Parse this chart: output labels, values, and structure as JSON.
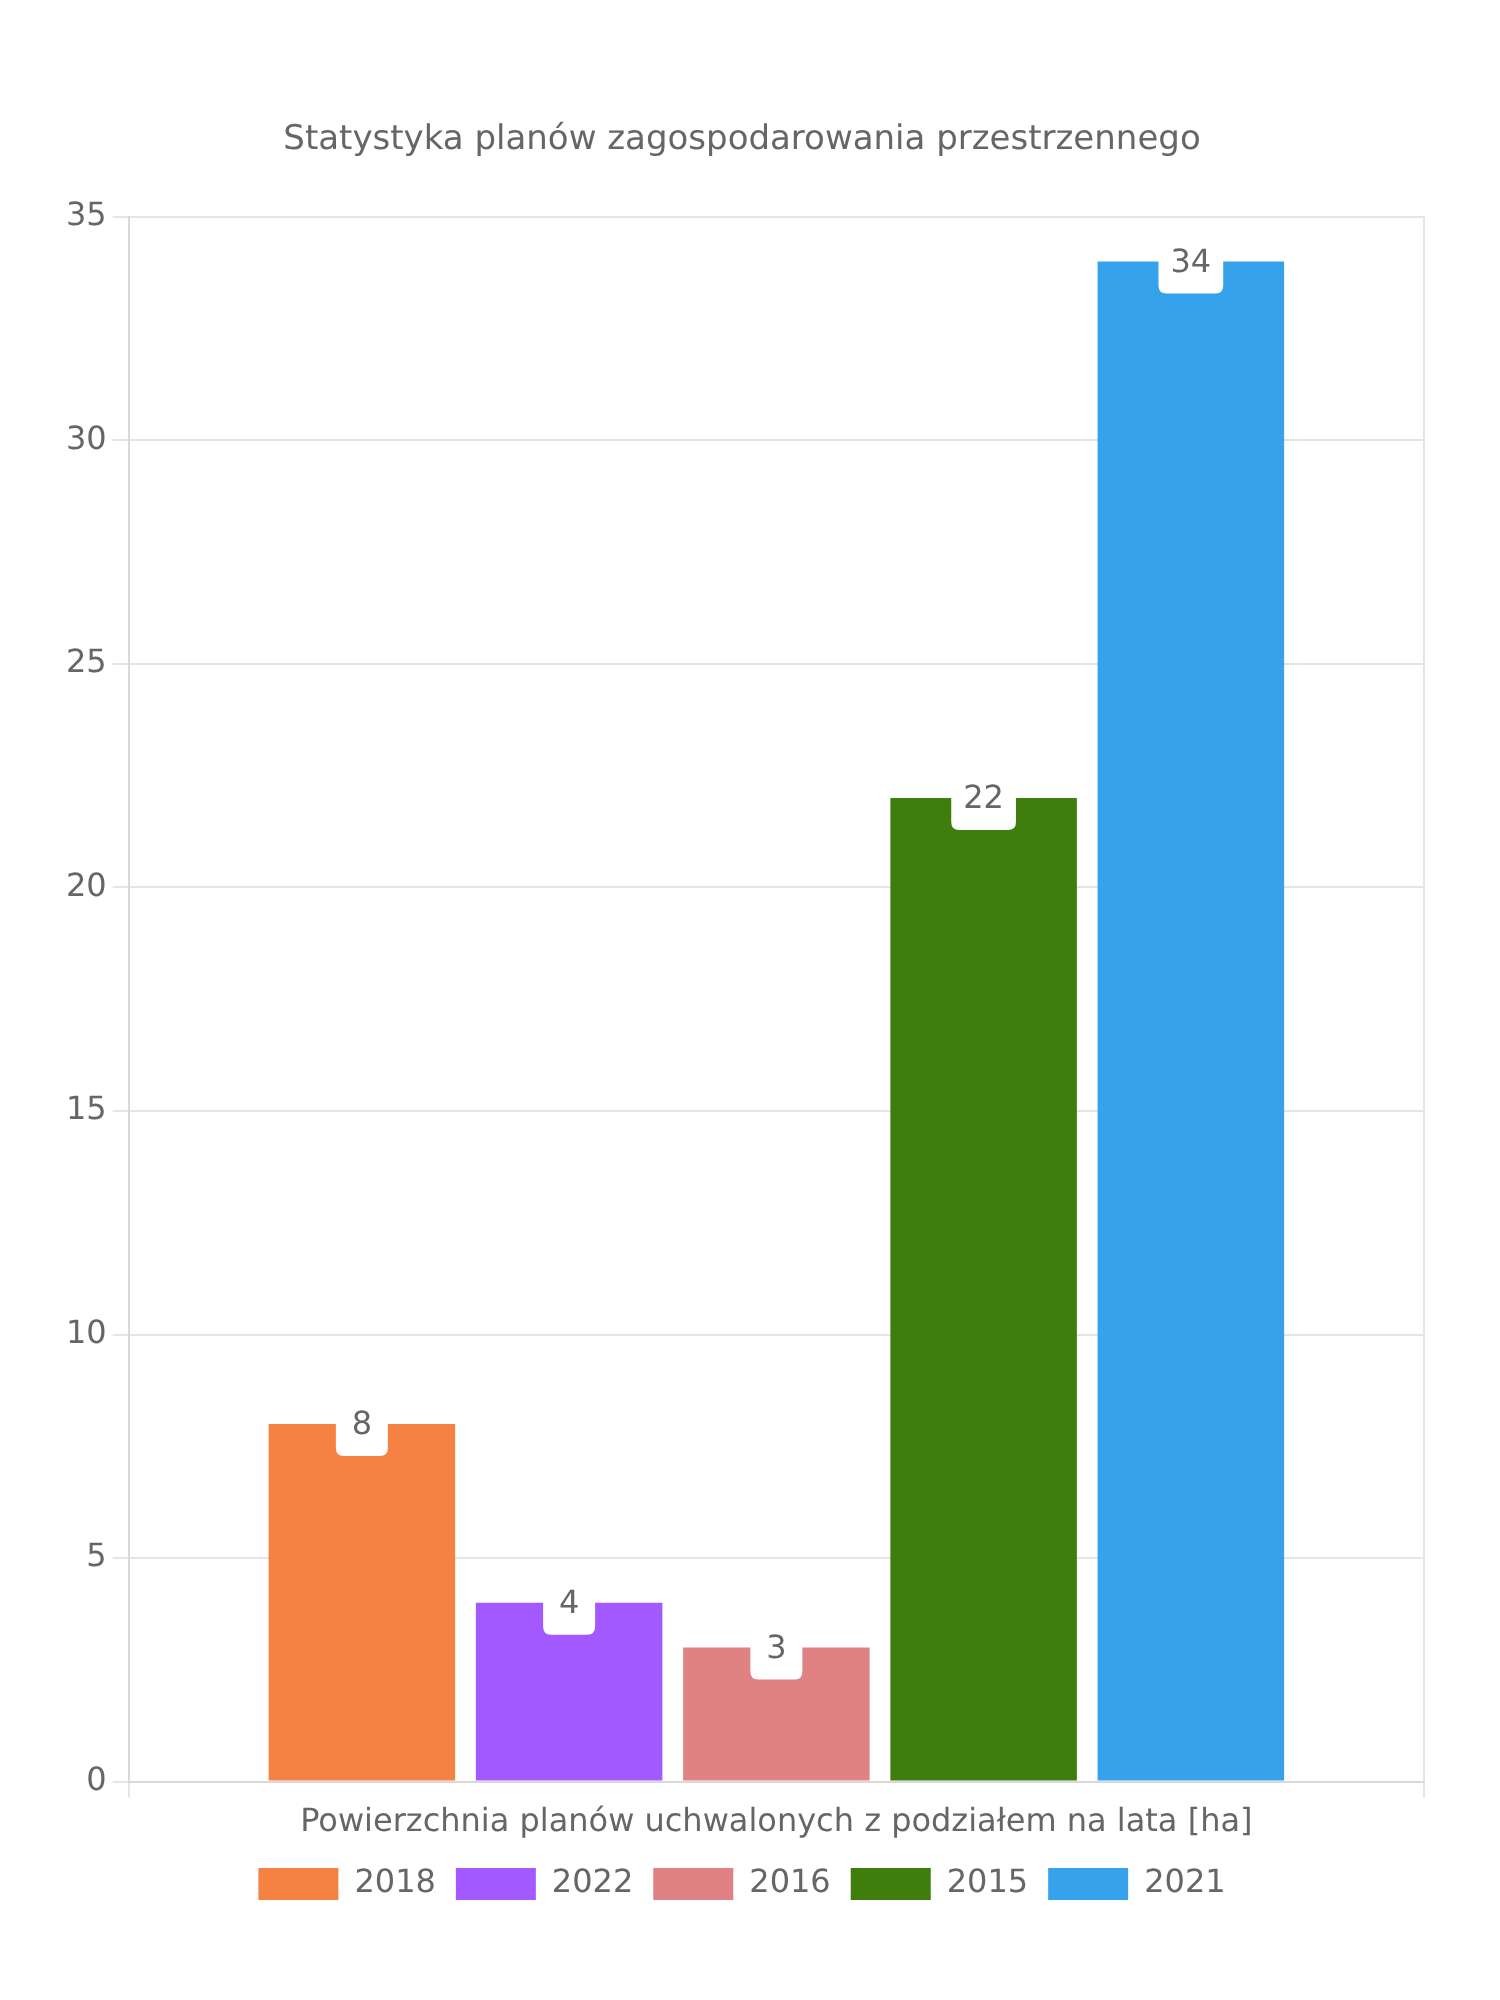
{
  "chart_data": {
    "type": "bar",
    "title": "Statystyka planów zagospodarowania przestrzennego",
    "categories": [
      "Powierzchnia planów uchwalonych z podziałem na lata [ha]"
    ],
    "series": [
      {
        "name": "2018",
        "color": "#f58142",
        "values": [
          8
        ]
      },
      {
        "name": "2022",
        "color": "#a259ff",
        "values": [
          4
        ]
      },
      {
        "name": "2016",
        "color": "#e08283",
        "values": [
          3
        ]
      },
      {
        "name": "2015",
        "color": "#3f7e0c",
        "values": [
          22
        ]
      },
      {
        "name": "2021",
        "color": "#36a2eb",
        "values": [
          34
        ]
      }
    ],
    "ylim": [
      0,
      35
    ],
    "yticks": [
      0,
      5,
      10,
      15,
      20,
      25,
      30,
      35
    ],
    "grid": true,
    "legend": "bottom",
    "data_labels": true
  }
}
